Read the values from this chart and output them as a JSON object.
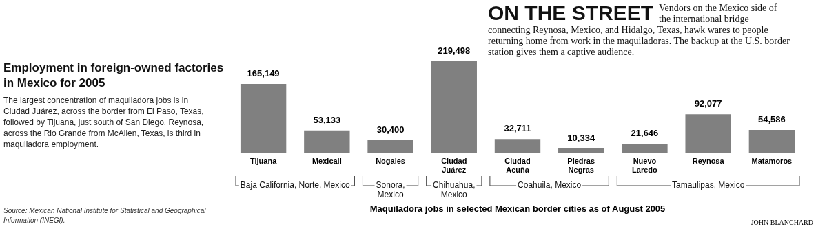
{
  "chart_data": {
    "type": "bar",
    "title": "Employment in foreign-owned factories in Mexico for 2005",
    "subtitle": "The largest concentration of maquiladora jobs is in Ciudad Juárez, across the border from El Paso, Texas, followed by Tijuana, just south of San Diego. Reynosa, across the Rio Grande from McAllen, Texas, is third in maquiladora employment.",
    "xlabel": "Maquiladora jobs in selected Mexican border cities as of August 2005",
    "categories": [
      "Tijuana",
      "Mexicali",
      "Nogales",
      "Ciudad Juárez",
      "Ciudad Acuña",
      "Piedras Negras",
      "Nuevo Laredo",
      "Reynosa",
      "Matamoros"
    ],
    "values": [
      165149,
      53133,
      30400,
      219498,
      32711,
      10334,
      21646,
      92077,
      54586
    ],
    "value_labels": [
      "165,149",
      "53,133",
      "30,400",
      "219,498",
      "32,711",
      "10,334",
      "21,646",
      "92,077",
      "54,586"
    ],
    "color": "#808080",
    "annotations": [
      "Source: Mexican National Institute for Statistical and Geographical Information (INEGI).",
      "ON THE STREET",
      "Vendors on the Mexico side of the international bridge connecting Reynosa, Mexico, and Hidalgo, Texas, hawk wares to people returning home from work in the maquiladoras. The backup at the U.S. border station gives them a captive audience.",
      "JOHN BLANCHARD",
      "Baja California, Norte, Mexico",
      "Sonora, Mexico",
      "Chihuahua, Mexico",
      "Coahuila, Mexico",
      "Tamaulipas, Mexico"
    ],
    "legend": false,
    "grid": false
  }
}
